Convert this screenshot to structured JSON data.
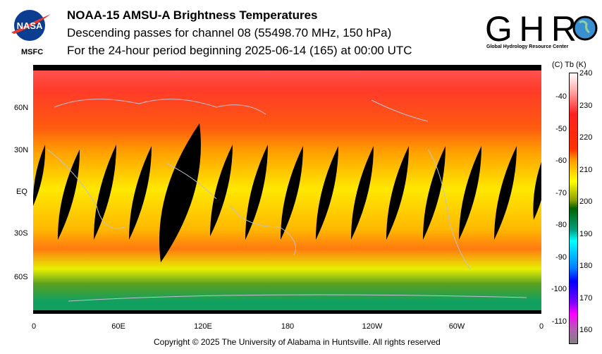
{
  "header": {
    "title": "NOAA-15 AMSU-A Brightness Temperatures",
    "subtitle1": "Descending passes for channel 08 (55498.70 MHz, 150 hPa)",
    "subtitle2": "For the 24-hour period beginning 2025-06-14 (165) at 00:00 UTC",
    "left_logo": "NASA",
    "left_logo_caption": "MSFC",
    "right_logo": "GHRC",
    "right_logo_caption": "Global Hydrology Resource Center"
  },
  "map": {
    "lat_labels": [
      "60N",
      "30N",
      "EQ",
      "30S",
      "60S"
    ],
    "lon_labels": [
      "0",
      "60E",
      "120E",
      "180",
      "120W",
      "60W",
      "0"
    ],
    "arrow_label": "←"
  },
  "colorbar": {
    "header": "(C)  Tb  (K)",
    "kelvin_ticks": [
      "240",
      "230",
      "220",
      "210",
      "200",
      "190",
      "180",
      "170",
      "160"
    ],
    "celsius_ticks": [
      "-40",
      "-50",
      "-60",
      "-70",
      "-80",
      "-90",
      "-100",
      "-110"
    ],
    "colors": [
      "#ffffff",
      "#ff2020",
      "#ff9a00",
      "#ffff00",
      "#006400",
      "#00ffff",
      "#0000ff",
      "#ff00ff",
      "#808080"
    ]
  },
  "footer": {
    "copyright": "Copyright © 2025 The University of Alabama in Huntsville.  All rights reserved"
  }
}
